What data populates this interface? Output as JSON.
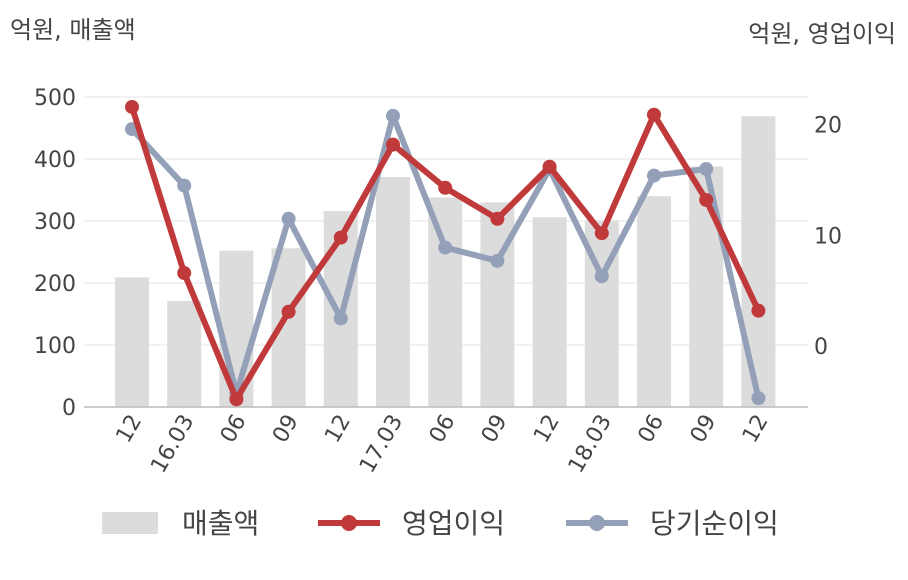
{
  "chart_data": {
    "type": "bar",
    "left_axis_unit": "억원, 매출액",
    "right_axis_unit": "억원, 영업이익",
    "categories": [
      "12",
      "16.03",
      "06",
      "09",
      "12",
      "17.03",
      "06",
      "09",
      "12",
      "18.03",
      "06",
      "09",
      "12"
    ],
    "y_left_ticks": [
      "0",
      "100",
      "200",
      "300",
      "400",
      "500"
    ],
    "y_right_ticks": [
      "0",
      "10",
      "20"
    ],
    "ylim_left": [
      0,
      500
    ],
    "ylim_right": [
      -5.5,
      22.5
    ],
    "grid": true,
    "legend_position": "bottom",
    "series": [
      {
        "name": "매출액",
        "type": "bar",
        "axis": "left",
        "color": "#dcdcdc",
        "values": [
          209,
          171,
          252,
          256,
          316,
          371,
          338,
          330,
          306,
          301,
          340,
          388,
          469
        ]
      },
      {
        "name": "영업이익",
        "type": "line",
        "axis": "right",
        "color": "#c0393b",
        "values": [
          21.6,
          6.6,
          -4.8,
          3.1,
          9.8,
          18.2,
          14.3,
          11.5,
          16.2,
          10.2,
          20.9,
          13.2,
          3.2
        ]
      },
      {
        "name": "당기순이익",
        "type": "line",
        "axis": "right",
        "color": "#93a0b8",
        "values": [
          19.6,
          14.5,
          -4.3,
          11.5,
          2.5,
          20.8,
          8.9,
          7.7,
          16.0,
          6.3,
          15.4,
          16.0,
          -4.7
        ]
      }
    ]
  }
}
